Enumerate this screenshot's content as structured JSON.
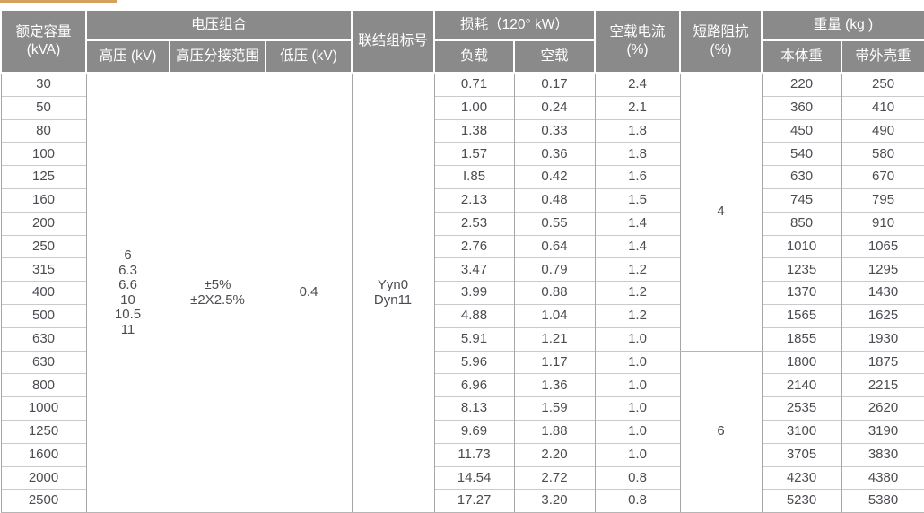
{
  "colors": {
    "header_bg": "#8a8a8a",
    "header_text": "#ffffff",
    "body_text": "#4b4b52",
    "vertical_border": "#a6a6a6",
    "horizontal_border": "#cacaca",
    "outer_border": "#b5b5b5",
    "top_strip": "#d3a25f",
    "top_rule": "#cfcfcf"
  },
  "table": {
    "header": {
      "rated_capacity_line1": "额定容量",
      "rated_capacity_line2": "(kVA)",
      "voltage_group": "电压组合",
      "hv": "高压 (kV)",
      "hv_tap_range": "高压分接范围",
      "lv": "低压 (kV)",
      "vector_group": "联结组标号",
      "loss_group": "损耗（120° kW）",
      "load_loss": "负载",
      "no_load_loss": "空载",
      "no_load_current_line1": "空载电流",
      "no_load_current_line2": "(%)",
      "impedance_line1": "短路阻抗",
      "impedance_line2": "(%)",
      "weight_group": "重量 (kg )",
      "body_weight": "本体重",
      "shell_weight": "带外壳重"
    },
    "merged": {
      "hv_values": [
        "6",
        "6.3",
        "6.6",
        "10",
        "10.5",
        "11"
      ],
      "tap_values": [
        "±5%",
        "±2X2.5%"
      ],
      "lv_value": "0.4",
      "vector_values": [
        "Yyn0",
        "Dyn11"
      ],
      "impedance_groups": [
        {
          "value": "4",
          "rows": 12
        },
        {
          "value": "6",
          "rows": 7
        }
      ]
    },
    "rows": [
      {
        "kva": "30",
        "load": "0.71",
        "noload": "0.17",
        "current": "2.4",
        "body": "220",
        "shell": "250"
      },
      {
        "kva": "50",
        "load": "1.00",
        "noload": "0.24",
        "current": "2.1",
        "body": "360",
        "shell": "410"
      },
      {
        "kva": "80",
        "load": "1.38",
        "noload": "0.33",
        "current": "1.8",
        "body": "450",
        "shell": "490"
      },
      {
        "kva": "100",
        "load": "1.57",
        "noload": "0.36",
        "current": "1.8",
        "body": "540",
        "shell": "580"
      },
      {
        "kva": "125",
        "load": "I.85",
        "noload": "0.42",
        "current": "1.6",
        "body": "630",
        "shell": "670"
      },
      {
        "kva": "160",
        "load": "2.13",
        "noload": "0.48",
        "current": "1.5",
        "body": "745",
        "shell": "795"
      },
      {
        "kva": "200",
        "load": "2.53",
        "noload": "0.55",
        "current": "1.4",
        "body": "850",
        "shell": "910"
      },
      {
        "kva": "250",
        "load": "2.76",
        "noload": "0.64",
        "current": "1.4",
        "body": "1010",
        "shell": "1065"
      },
      {
        "kva": "315",
        "load": "3.47",
        "noload": "0.79",
        "current": "1.2",
        "body": "1235",
        "shell": "1295"
      },
      {
        "kva": "400",
        "load": "3.99",
        "noload": "0.88",
        "current": "1.2",
        "body": "1370",
        "shell": "1430"
      },
      {
        "kva": "500",
        "load": "4.88",
        "noload": "1.04",
        "current": "1.2",
        "body": "1565",
        "shell": "1625"
      },
      {
        "kva": "630",
        "load": "5.91",
        "noload": "1.21",
        "current": "1.0",
        "body": "1855",
        "shell": "1930"
      },
      {
        "kva": "630",
        "load": "5.96",
        "noload": "1.17",
        "current": "1.0",
        "body": "1800",
        "shell": "1875"
      },
      {
        "kva": "800",
        "load": "6.96",
        "noload": "1.36",
        "current": "1.0",
        "body": "2140",
        "shell": "2215"
      },
      {
        "kva": "1000",
        "load": "8.13",
        "noload": "1.59",
        "current": "1.0",
        "body": "2535",
        "shell": "2620"
      },
      {
        "kva": "1250",
        "load": "9.69",
        "noload": "1.88",
        "current": "1.0",
        "body": "3100",
        "shell": "3190"
      },
      {
        "kva": "1600",
        "load": "11.73",
        "noload": "2.20",
        "current": "1.0",
        "body": "3705",
        "shell": "3830"
      },
      {
        "kva": "2000",
        "load": "14.54",
        "noload": "2.72",
        "current": "0.8",
        "body": "4230",
        "shell": "4380"
      },
      {
        "kva": "2500",
        "load": "17.27",
        "noload": "3.20",
        "current": "0.8",
        "body": "5230",
        "shell": "5380"
      }
    ]
  }
}
